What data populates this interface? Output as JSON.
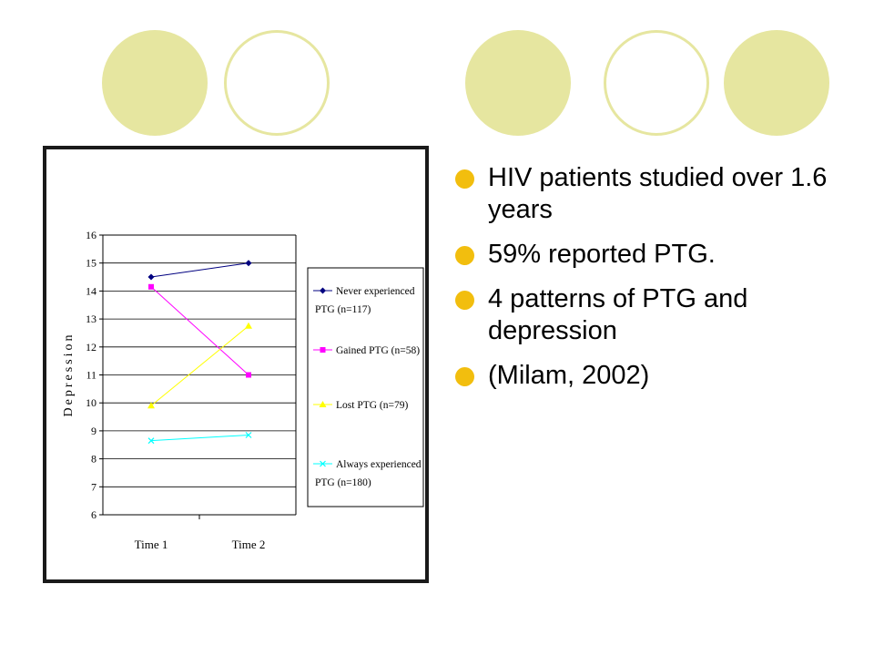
{
  "decor": {
    "circle_fill": "#e6e6a0",
    "bullet_color": "#f2be0e"
  },
  "bullets": [
    "HIV patients studied over 1.6 years",
    "59% reported PTG.",
    "4 patterns of PTG and depression",
    "(Milam, 2002)"
  ],
  "chart_data": {
    "type": "line",
    "title": "",
    "xlabel": "",
    "ylabel": "Depression",
    "categories": [
      "Time 1",
      "Time 2"
    ],
    "ylim": [
      6,
      16
    ],
    "yticks": [
      6,
      7,
      8,
      9,
      10,
      11,
      12,
      13,
      14,
      15,
      16
    ],
    "legend_position": "right",
    "grid": "horizontal",
    "series": [
      {
        "name": "Never experienced PTG (n=117)",
        "values": [
          14.5,
          15.0
        ],
        "color": "#000080",
        "marker": "diamond"
      },
      {
        "name": "Gained PTG (n=58)",
        "values": [
          14.15,
          11.0
        ],
        "color": "#ff00ff",
        "marker": "square"
      },
      {
        "name": "Lost PTG (n=79)",
        "values": [
          9.9,
          12.75
        ],
        "color": "#ffff00",
        "marker": "triangle"
      },
      {
        "name": "Always experienced PTG (n=180)",
        "values": [
          8.65,
          8.85
        ],
        "color": "#00ffff",
        "marker": "x"
      }
    ]
  }
}
